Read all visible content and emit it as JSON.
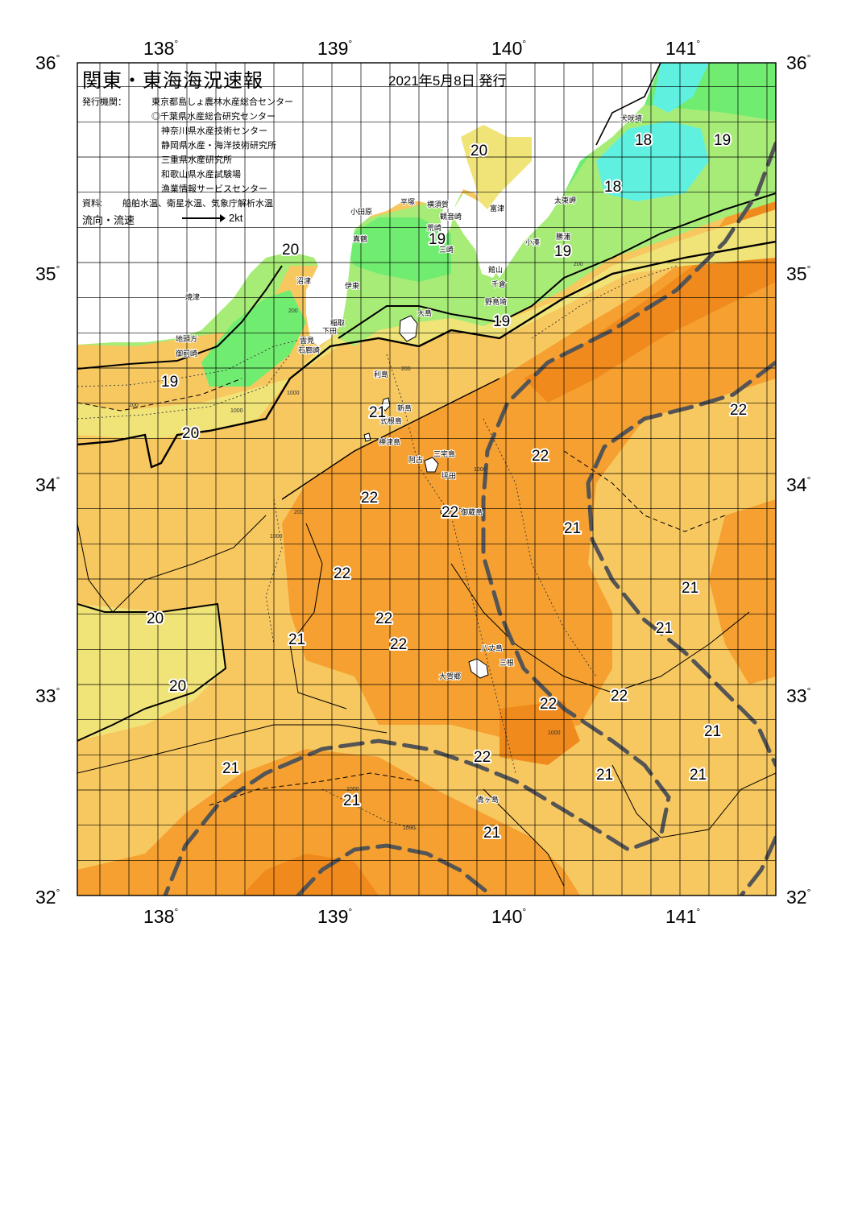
{
  "map": {
    "title": "関東・東海海況速報",
    "issue_date": "2021年5月8日 発行",
    "publisher_label": "発行機関：",
    "publishers": [
      "東京都島しょ農林水産総合センター",
      "◎千葉県水産総合研究センター",
      "神奈川県水産技術センター",
      "静岡県水産・海洋技術研究所",
      "三重県水産研究所",
      "和歌山県水産試験場",
      "漁業情報サービスセンター"
    ],
    "source_label": "資料:",
    "source_text": "船舶水温、衛星水温、気象庁解析水温",
    "flow_label": "流向・流速",
    "flow_speed": "2kt",
    "lon_ticks": [
      "138",
      "139",
      "140",
      "141"
    ],
    "lat_ticks": [
      "36",
      "35",
      "34",
      "33",
      "32"
    ],
    "degree_symbol": "°",
    "isotherm_labels": [
      "20",
      "18",
      "19",
      "18",
      "19",
      "19",
      "20",
      "19",
      "19",
      "20",
      "21",
      "22",
      "22",
      "22",
      "21",
      "22",
      "22",
      "22",
      "20",
      "21",
      "20",
      "22",
      "22",
      "21",
      "21",
      "21",
      "22",
      "21",
      "21",
      "21",
      "21",
      "21",
      "22",
      "21"
    ],
    "place_names": [
      "犬吠埼",
      "太東岬",
      "勝浦",
      "小湊",
      "富津",
      "館山",
      "千倉",
      "野島埼",
      "横須賀",
      "観音崎",
      "荒崎",
      "三崎",
      "平塚",
      "小田原",
      "真鶴",
      "伊東",
      "稲取",
      "下田",
      "石廊崎",
      "雲見",
      "沼津",
      "焼津",
      "地頭方",
      "御前崎",
      "大島",
      "利島",
      "新島",
      "式根島",
      "神津島",
      "三宅島",
      "阿古",
      "坪田",
      "御蔵島",
      "八丈島",
      "三根",
      "大賀郷",
      "青ヶ島"
    ],
    "depth_labels": [
      "200",
      "1000",
      "200",
      "1000",
      "200",
      "1000",
      "200",
      "1000",
      "1000",
      "1000",
      "1000",
      "200"
    ],
    "colors": {
      "water_17": "#60f0e0",
      "water_18": "#70ec70",
      "water_19": "#a8ec78",
      "water_20": "#f0e478",
      "water_21": "#f8c860",
      "water_22": "#f5a030",
      "water_23": "#f08a1c",
      "land": "#ffffff",
      "current_axis": "#555555"
    }
  }
}
